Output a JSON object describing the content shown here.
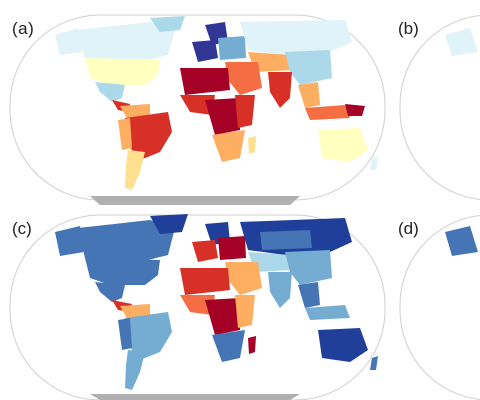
{
  "panels": [
    {
      "label": "(a)",
      "scheme": "warm"
    },
    {
      "label": "(b)",
      "scheme": "cut-off"
    },
    {
      "label": "(c)",
      "scheme": "cool"
    },
    {
      "label": "(d)",
      "scheme": "cut-off"
    }
  ],
  "colors": {
    "ocean": "#ffffff",
    "outline": "#c8c8c8",
    "no_data": "#b0b0b0",
    "dark_red": "#a50026",
    "red": "#d73027",
    "orange": "#f46d43",
    "light_orange": "#fdae61",
    "pale_yellow": "#fee090",
    "cream": "#ffffbf",
    "pale_blue": "#e0f3f8",
    "light_blue": "#abd9e9",
    "mid_blue": "#74add1",
    "blue": "#4575b4",
    "dark_blue": "#313695",
    "navy": "#1f3f9a"
  }
}
